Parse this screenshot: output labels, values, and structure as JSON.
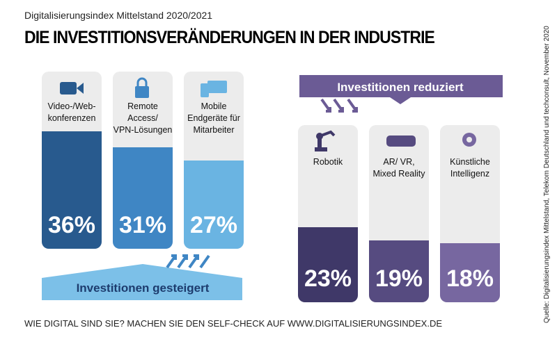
{
  "subtitle": "Digitalisierungsindex Mittelstand 2020/2021",
  "title": "DIE INVESTITIONSVERÄNDERUNGEN IN DER INDUSTRIE",
  "footer": "WIE DIGITAL SIND SIE? MACHEN SIE DEN SELF-CHECK AUF WWW.DIGITALISIERUNGSINDEX.DE",
  "source": "Quelle: Digitalisierungsindex Mittelstand, Telekom Deutschland und techconsult, November 2020",
  "chart_data": [
    {
      "type": "bar",
      "banner": "Investitionen gesteigert",
      "categories": [
        "Video-/Web-\nkonferenzen",
        "Remote\nAccess/\nVPN-Lösungen",
        "Mobile\nEndgeräte für\nMitarbeiter"
      ],
      "values": [
        36,
        31,
        27
      ],
      "value_labels": [
        "36%",
        "31%",
        "27%"
      ],
      "colors": [
        "#285a8e",
        "#3f86c4",
        "#6ab4e2"
      ]
    },
    {
      "type": "bar",
      "banner": "Investitionen reduziert",
      "categories": [
        "Robotik",
        "AR/ VR,\nMixed Reality",
        "Künstliche\nIntelligenz"
      ],
      "values": [
        23,
        19,
        18
      ],
      "value_labels": [
        "23%",
        "19%",
        "18%"
      ],
      "colors": [
        "#3f3868",
        "#564b80",
        "#7767a0"
      ]
    }
  ]
}
